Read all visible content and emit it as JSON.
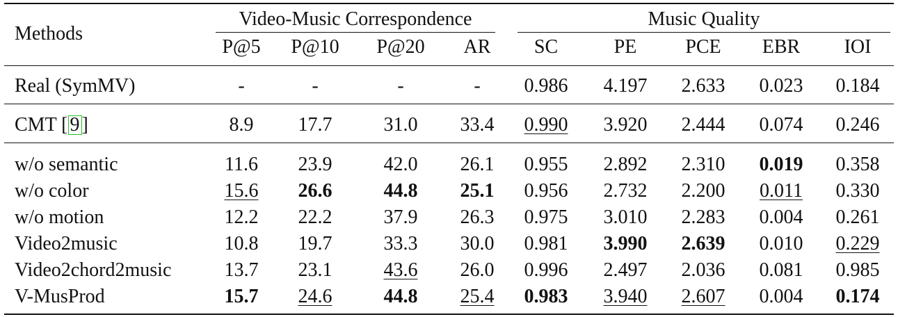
{
  "header": {
    "methods_label": "Methods",
    "group_correspondence": "Video-Music Correspondence",
    "group_quality": "Music Quality",
    "columns": [
      "P@5",
      "P@10",
      "P@20",
      "AR",
      "SC",
      "PE",
      "PCE",
      "EBR",
      "IOI"
    ]
  },
  "rows": [
    {
      "name": "Real (SymMV)",
      "cite": "",
      "values": [
        "-",
        "-",
        "-",
        "-",
        "0.986",
        "4.197",
        "2.633",
        "0.023",
        "0.184"
      ],
      "styles": [
        "",
        "",
        "",
        "",
        "",
        "",
        "",
        "",
        ""
      ]
    },
    {
      "name": "CMT [",
      "cite": "9",
      "name_tail": "]",
      "values": [
        "8.9",
        "17.7",
        "31.0",
        "33.4",
        "0.990",
        "3.920",
        "2.444",
        "0.074",
        "0.246"
      ],
      "styles": [
        "",
        "",
        "",
        "",
        "ul",
        "",
        "",
        "",
        ""
      ]
    },
    {
      "name": "w/o semantic",
      "cite": "",
      "values": [
        "11.6",
        "23.9",
        "42.0",
        "26.1",
        "0.955",
        "2.892",
        "2.310",
        "0.019",
        "0.358"
      ],
      "styles": [
        "",
        "",
        "",
        "",
        "",
        "",
        "",
        "bold",
        ""
      ]
    },
    {
      "name": "w/o color",
      "cite": "",
      "values": [
        "15.6",
        "26.6",
        "44.8",
        "25.1",
        "0.956",
        "2.732",
        "2.200",
        "0.011",
        "0.330"
      ],
      "styles": [
        "ul",
        "bold",
        "bold",
        "bold",
        "",
        "",
        "",
        "ul",
        ""
      ]
    },
    {
      "name": "w/o motion",
      "cite": "",
      "values": [
        "12.2",
        "22.2",
        "37.9",
        "26.3",
        "0.975",
        "3.010",
        "2.283",
        "0.004",
        "0.261"
      ],
      "styles": [
        "",
        "",
        "",
        "",
        "",
        "",
        "",
        "",
        ""
      ]
    },
    {
      "name": "Video2music",
      "cite": "",
      "values": [
        "10.8",
        "19.7",
        "33.3",
        "30.0",
        "0.981",
        "3.990",
        "2.639",
        "0.010",
        "0.229"
      ],
      "styles": [
        "",
        "",
        "",
        "",
        "",
        "bold",
        "bold",
        "",
        "ul"
      ]
    },
    {
      "name": "Video2chord2music",
      "cite": "",
      "values": [
        "13.7",
        "23.1",
        "43.6",
        "26.0",
        "0.996",
        "2.497",
        "2.036",
        "0.081",
        "0.985"
      ],
      "styles": [
        "",
        "",
        "ul",
        "",
        "",
        "",
        "",
        "",
        ""
      ]
    },
    {
      "name": "V-MusProd",
      "cite": "",
      "values": [
        "15.7",
        "24.6",
        "44.8",
        "25.4",
        "0.983",
        "3.940",
        "2.607",
        "0.004",
        "0.174"
      ],
      "styles": [
        "bold",
        "ul",
        "bold",
        "ul",
        "bold",
        "ul",
        "ul",
        "",
        "bold"
      ]
    }
  ]
}
